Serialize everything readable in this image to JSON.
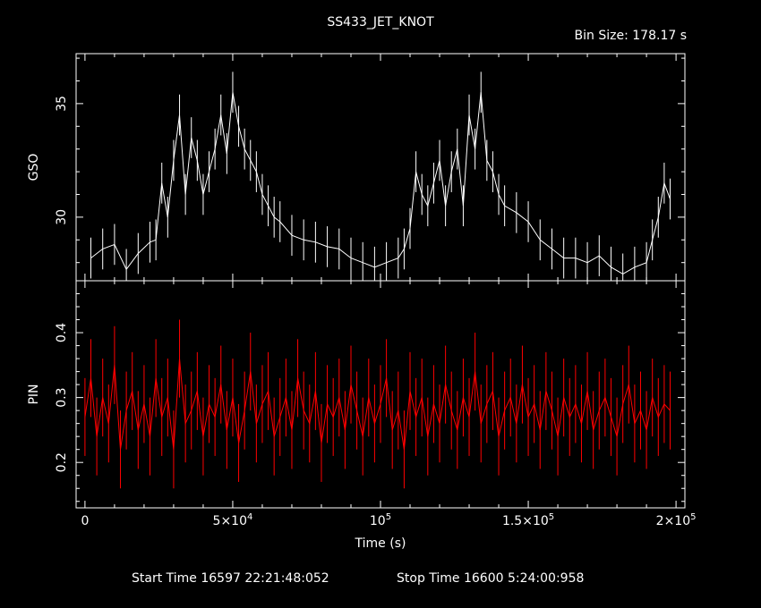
{
  "title": "SS433_JET_KNOT",
  "bin_size_label": "Bin Size:  178.17  s",
  "footer": {
    "start": "Start Time 16597 22:21:48:052",
    "stop": "Stop Time 16600  5:24:00:958"
  },
  "colors": {
    "background": "#000000",
    "gso": "#ffffff",
    "pin": "#ff0000",
    "axes": "#ffffff"
  },
  "chart_data": [
    {
      "type": "line",
      "panel": "top",
      "ylabel": "GSO",
      "xlim": [
        -3000,
        203000
      ],
      "ylim": [
        27.2,
        37.2
      ],
      "y_ticks": [
        30,
        35
      ],
      "y_tick_labels": [
        "30",
        "35"
      ],
      "series": [
        {
          "x": [
            2000,
            6000,
            10000,
            14000,
            18000,
            22000,
            24000,
            26000,
            28000,
            30000,
            32000,
            34000,
            36000,
            38000,
            40000,
            42000,
            44000,
            46000,
            48000,
            50000,
            52000,
            54000,
            56000,
            58000,
            60000,
            62000,
            64000,
            66000,
            70000,
            74000,
            78000,
            82000,
            86000,
            90000,
            94000,
            98000,
            102000,
            106000,
            108000,
            110000,
            112000,
            114000,
            116000,
            118000,
            120000,
            122000,
            124000,
            126000,
            128000,
            130000,
            132000,
            134000,
            136000,
            138000,
            140000,
            142000,
            146000,
            150000,
            154000,
            158000,
            162000,
            166000,
            170000,
            174000,
            178000,
            182000,
            186000,
            190000,
            192000,
            194000,
            196000,
            198000
          ],
          "y": [
            28.2,
            28.6,
            28.8,
            27.7,
            28.4,
            28.9,
            29.0,
            31.5,
            30.0,
            32.5,
            34.5,
            31.0,
            33.5,
            32.5,
            31.0,
            32.0,
            33.0,
            34.5,
            32.8,
            35.5,
            34.0,
            33.0,
            32.5,
            32.0,
            31.0,
            30.5,
            30.0,
            29.8,
            29.2,
            29.0,
            28.9,
            28.7,
            28.6,
            28.2,
            28.0,
            27.8,
            28.0,
            28.2,
            28.6,
            29.5,
            32.0,
            31.0,
            30.5,
            31.5,
            32.5,
            30.5,
            32.0,
            33.0,
            30.5,
            34.5,
            33.0,
            35.5,
            32.5,
            32.0,
            31.0,
            30.5,
            30.2,
            29.8,
            29.0,
            28.6,
            28.2,
            28.2,
            28.0,
            28.3,
            27.8,
            27.5,
            27.8,
            28.0,
            29.0,
            30.0,
            31.5,
            30.8
          ]
        }
      ]
    },
    {
      "type": "line",
      "panel": "bottom",
      "xlabel": "Time (s)",
      "ylabel": "PIN",
      "xlim": [
        -3000,
        203000
      ],
      "ylim": [
        0.13,
        0.48
      ],
      "x_ticks": [
        0,
        50000,
        100000,
        150000,
        200000
      ],
      "x_tick_labels": [
        {
          "base": "0",
          "exp": ""
        },
        {
          "base": "5×10",
          "exp": "4"
        },
        {
          "base": "10",
          "exp": "5"
        },
        {
          "base": "1.5×10",
          "exp": "5"
        },
        {
          "base": "2×10",
          "exp": "5"
        }
      ],
      "y_ticks": [
        0.2,
        0.3,
        0.4
      ],
      "y_tick_labels": [
        "0.2",
        "0.3",
        "0.4"
      ],
      "series": [
        {
          "x": [
            0,
            2000,
            4000,
            6000,
            8000,
            10000,
            12000,
            14000,
            16000,
            18000,
            20000,
            22000,
            24000,
            26000,
            28000,
            30000,
            32000,
            34000,
            36000,
            38000,
            40000,
            42000,
            44000,
            46000,
            48000,
            50000,
            52000,
            54000,
            56000,
            58000,
            60000,
            62000,
            64000,
            66000,
            68000,
            70000,
            72000,
            74000,
            76000,
            78000,
            80000,
            82000,
            84000,
            86000,
            88000,
            90000,
            92000,
            94000,
            96000,
            98000,
            100000,
            102000,
            104000,
            106000,
            108000,
            110000,
            112000,
            114000,
            116000,
            118000,
            120000,
            122000,
            124000,
            126000,
            128000,
            130000,
            132000,
            134000,
            136000,
            138000,
            140000,
            142000,
            144000,
            146000,
            148000,
            150000,
            152000,
            154000,
            156000,
            158000,
            160000,
            162000,
            164000,
            166000,
            168000,
            170000,
            172000,
            174000,
            176000,
            178000,
            180000,
            182000,
            184000,
            186000,
            188000,
            190000,
            192000,
            194000,
            196000,
            198000
          ],
          "y": [
            0.27,
            0.33,
            0.24,
            0.3,
            0.26,
            0.35,
            0.22,
            0.28,
            0.31,
            0.25,
            0.29,
            0.24,
            0.33,
            0.27,
            0.3,
            0.22,
            0.36,
            0.26,
            0.28,
            0.31,
            0.24,
            0.29,
            0.27,
            0.32,
            0.25,
            0.3,
            0.23,
            0.28,
            0.34,
            0.26,
            0.29,
            0.31,
            0.24,
            0.27,
            0.3,
            0.25,
            0.33,
            0.28,
            0.26,
            0.31,
            0.23,
            0.29,
            0.27,
            0.3,
            0.25,
            0.32,
            0.28,
            0.24,
            0.3,
            0.26,
            0.29,
            0.33,
            0.25,
            0.28,
            0.22,
            0.31,
            0.27,
            0.3,
            0.24,
            0.29,
            0.26,
            0.32,
            0.28,
            0.25,
            0.3,
            0.27,
            0.34,
            0.26,
            0.29,
            0.31,
            0.24,
            0.28,
            0.3,
            0.26,
            0.32,
            0.27,
            0.29,
            0.25,
            0.31,
            0.28,
            0.24,
            0.3,
            0.27,
            0.29,
            0.26,
            0.31,
            0.25,
            0.28,
            0.3,
            0.27,
            0.24,
            0.29,
            0.32,
            0.26,
            0.28,
            0.25,
            0.3,
            0.27,
            0.29,
            0.28
          ]
        }
      ]
    }
  ]
}
